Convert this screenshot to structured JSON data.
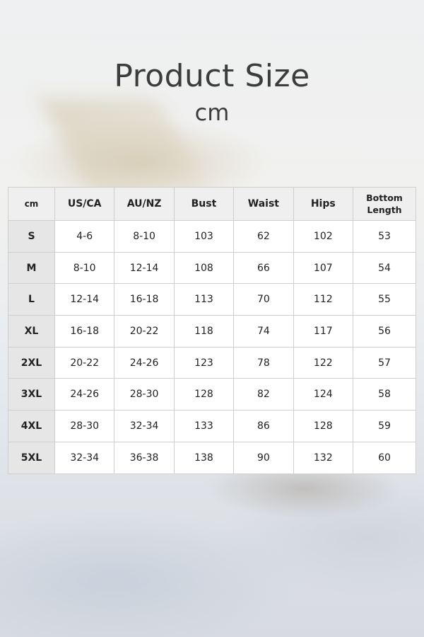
{
  "title": "Product Size",
  "unit": "cm",
  "table": {
    "headers": [
      "cm",
      "US/CA",
      "AU/NZ",
      "Bust",
      "Waist",
      "Hips",
      "Bottom Length"
    ],
    "rows": [
      [
        "S",
        "4-6",
        "8-10",
        "103",
        "62",
        "102",
        "53"
      ],
      [
        "M",
        "8-10",
        "12-14",
        "108",
        "66",
        "107",
        "54"
      ],
      [
        "L",
        "12-14",
        "16-18",
        "113",
        "70",
        "112",
        "55"
      ],
      [
        "XL",
        "16-18",
        "20-22",
        "118",
        "74",
        "117",
        "56"
      ],
      [
        "2XL",
        "20-22",
        "24-26",
        "123",
        "78",
        "122",
        "57"
      ],
      [
        "3XL",
        "24-26",
        "28-30",
        "128",
        "82",
        "124",
        "58"
      ],
      [
        "4XL",
        "28-30",
        "32-34",
        "133",
        "86",
        "128",
        "59"
      ],
      [
        "5XL",
        "32-34",
        "36-38",
        "138",
        "90",
        "132",
        "60"
      ]
    ]
  }
}
